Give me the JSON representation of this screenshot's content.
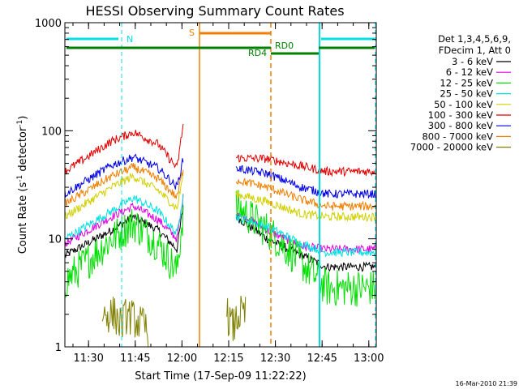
{
  "chart_data": {
    "type": "line",
    "title": "HESSI Observing Summary Count Rates",
    "xlabel": "Start Time (17-Sep-09 11:22:22)",
    "ylabel_main": "Count Rate (s",
    "ylabel_sup1": "-1",
    "ylabel_mid": " detector",
    "ylabel_sup2": "-1",
    "ylabel_end": ")",
    "y_scale": "log",
    "ylim": [
      1,
      1000
    ],
    "xlim_minutes": [
      0,
      100
    ],
    "x_ticks": [
      {
        "min": 7.6,
        "label": "11:30"
      },
      {
        "min": 22.6,
        "label": "11:45"
      },
      {
        "min": 37.6,
        "label": "12:00"
      },
      {
        "min": 52.6,
        "label": "12:15"
      },
      {
        "min": 67.6,
        "label": "12:30"
      },
      {
        "min": 82.6,
        "label": "12:45"
      },
      {
        "min": 97.6,
        "label": "13:00"
      }
    ],
    "y_ticks": [
      {
        "value": 1,
        "label": "1"
      },
      {
        "value": 10,
        "label": "10"
      },
      {
        "value": 100,
        "label": "100"
      },
      {
        "value": 1000,
        "label": "1000"
      }
    ],
    "legend_header": [
      "Det 1,3,4,5,6,9,",
      "FDecim 1, Att 0"
    ],
    "legend_placement": "right",
    "series": [
      {
        "name": "3 - 6 keV",
        "color": "#000000",
        "seg1": [
          [
            0,
            7
          ],
          [
            15,
            12
          ],
          [
            22,
            16
          ],
          [
            30,
            12
          ],
          [
            36,
            8
          ],
          [
            38,
            20
          ]
        ],
        "seg2": [
          [
            55,
            16
          ],
          [
            65,
            10
          ],
          [
            76,
            7
          ],
          [
            84,
            5.5
          ],
          [
            100,
            5.5
          ]
        ]
      },
      {
        "name": "6 - 12 keV",
        "color": "#e000e0",
        "seg1": [
          [
            0,
            9
          ],
          [
            15,
            16
          ],
          [
            22,
            20
          ],
          [
            30,
            15
          ],
          [
            36,
            10
          ],
          [
            38,
            24
          ]
        ],
        "seg2": [
          [
            55,
            18
          ],
          [
            65,
            12
          ],
          [
            76,
            8.5
          ],
          [
            84,
            8
          ],
          [
            100,
            8
          ]
        ]
      },
      {
        "name": "12 - 25 keV",
        "color": "#00e000",
        "seg1": [
          [
            0,
            4
          ],
          [
            15,
            10
          ],
          [
            22,
            14
          ],
          [
            30,
            9
          ],
          [
            36,
            5
          ],
          [
            38,
            18
          ]
        ],
        "seg2": [
          [
            55,
            20
          ],
          [
            65,
            12
          ],
          [
            76,
            6
          ],
          [
            84,
            3.5
          ],
          [
            100,
            3.5
          ]
        ]
      },
      {
        "name": "25 - 50 keV",
        "color": "#00e0e0",
        "seg1": [
          [
            0,
            10
          ],
          [
            15,
            18
          ],
          [
            22,
            24
          ],
          [
            30,
            18
          ],
          [
            36,
            11
          ],
          [
            38,
            26
          ]
        ],
        "seg2": [
          [
            55,
            16
          ],
          [
            65,
            13
          ],
          [
            76,
            9
          ],
          [
            84,
            7.5
          ],
          [
            100,
            7.5
          ]
        ]
      },
      {
        "name": "50 - 100 keV",
        "color": "#d0d000",
        "seg1": [
          [
            0,
            16
          ],
          [
            15,
            30
          ],
          [
            22,
            38
          ],
          [
            30,
            28
          ],
          [
            36,
            19
          ],
          [
            38,
            40
          ]
        ],
        "seg2": [
          [
            55,
            26
          ],
          [
            65,
            22
          ],
          [
            76,
            17
          ],
          [
            84,
            16
          ],
          [
            100,
            16
          ]
        ]
      },
      {
        "name": "100 - 300 keV",
        "color": "#e00000",
        "seg1": [
          [
            0,
            42
          ],
          [
            15,
            80
          ],
          [
            22,
            97
          ],
          [
            30,
            75
          ],
          [
            36,
            45
          ],
          [
            38,
            115
          ]
        ],
        "seg2": [
          [
            55,
            56
          ],
          [
            65,
            55
          ],
          [
            76,
            47
          ],
          [
            84,
            42
          ],
          [
            100,
            42
          ]
        ]
      },
      {
        "name": "300 - 800 keV",
        "color": "#0000e0",
        "seg1": [
          [
            0,
            26
          ],
          [
            15,
            48
          ],
          [
            22,
            57
          ],
          [
            30,
            45
          ],
          [
            36,
            30
          ],
          [
            38,
            55
          ]
        ],
        "seg2": [
          [
            55,
            45
          ],
          [
            65,
            40
          ],
          [
            76,
            30
          ],
          [
            84,
            26
          ],
          [
            100,
            26
          ]
        ]
      },
      {
        "name": "800 - 7000 keV",
        "color": "#f08000",
        "seg1": [
          [
            0,
            21
          ],
          [
            15,
            38
          ],
          [
            22,
            46
          ],
          [
            30,
            36
          ],
          [
            36,
            24
          ],
          [
            38,
            45
          ]
        ],
        "seg2": [
          [
            55,
            35
          ],
          [
            65,
            30
          ],
          [
            76,
            23
          ],
          [
            84,
            20
          ],
          [
            100,
            20
          ]
        ]
      },
      {
        "name": "7000 - 20000 keV",
        "color": "#808000",
        "seg1": [
          [
            12,
            2
          ],
          [
            16,
            2
          ],
          [
            18,
            1.6
          ],
          [
            20,
            2
          ],
          [
            26,
            1.5
          ],
          [
            27,
            1
          ]
        ],
        "seg2": [
          [
            52,
            2
          ],
          [
            54,
            1.5
          ],
          [
            56,
            2
          ],
          [
            58,
            2
          ]
        ]
      }
    ],
    "x_start_min": 0,
    "gap1_start": 38.5,
    "gap2_end": 52,
    "gap1_end_s": 38.5,
    "flags": {
      "N_label": "N",
      "S_label": "S",
      "RD0_label": "RD0",
      "RD4_label": "RD4"
    },
    "timestamp": "16-Mar-2010 21:39"
  }
}
